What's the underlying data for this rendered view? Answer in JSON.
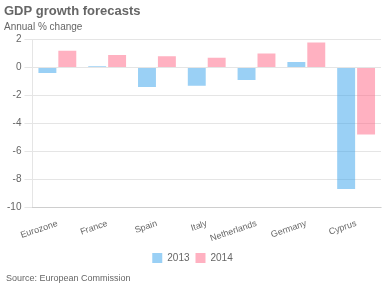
{
  "chart_data": {
    "type": "bar",
    "title": "GDP growth forecasts",
    "subtitle": "Annual % change",
    "categories": [
      "Eurozone",
      "France",
      "Spain",
      "Italy",
      "Netherlands",
      "Germany",
      "Cyprus"
    ],
    "series": [
      {
        "name": "2013",
        "values": [
          -0.4,
          0.1,
          -1.4,
          -1.3,
          -0.9,
          0.4,
          -8.7
        ]
      },
      {
        "name": "2014",
        "values": [
          1.2,
          0.9,
          0.8,
          0.7,
          1.0,
          1.8,
          -4.8
        ]
      }
    ],
    "ylim": [
      -10,
      2
    ],
    "yticks": [
      -10,
      -8,
      -6,
      -4,
      -2,
      0,
      2
    ],
    "grid": true,
    "legend": "bottom",
    "source": "Source: European Commission"
  }
}
